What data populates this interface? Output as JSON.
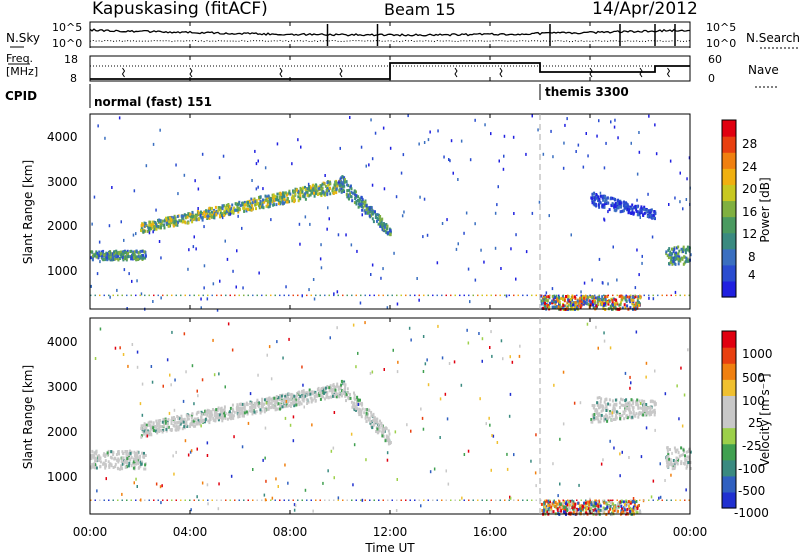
{
  "header": {
    "station": "Kapuskasing (fitACF)",
    "beam": "Beam 15",
    "date": "14/Apr/2012"
  },
  "noise_panel": {
    "left_label": "N.Sky",
    "right_label": "N.Search",
    "yticks_left": [
      "10^5",
      "10^0"
    ],
    "yticks_right": [
      "10^5",
      "10^0"
    ]
  },
  "freq_panel": {
    "left_label_line1": "Freq.",
    "left_label_line2": "[MHz]",
    "right_label": "Nave",
    "yticks_left": [
      "18",
      "8"
    ],
    "yticks_right": [
      "60",
      "0"
    ]
  },
  "cpid_panel": {
    "label": "CPID",
    "modes": [
      {
        "name": "normal (fast) 151",
        "start_hour": 0
      },
      {
        "name": "themis 3300",
        "start_hour": 18
      }
    ]
  },
  "range_panels": {
    "ylabel": "Slant Range [km]",
    "yticks": [
      "4000",
      "3000",
      "2000",
      "1000"
    ],
    "ylim": [
      180,
      4500
    ]
  },
  "time_axis": {
    "xlabel": "Time UT",
    "ticks": [
      "00:00",
      "04:00",
      "08:00",
      "12:00",
      "16:00",
      "20:00",
      "00:00"
    ],
    "xlim_hours": [
      0,
      24
    ]
  },
  "power_colorbar": {
    "label": "Power [dB]",
    "ticks": [
      "28",
      "24",
      "20",
      "16",
      "12",
      "8",
      "4"
    ],
    "colors": [
      "#2020e0",
      "#2a4cd0",
      "#3a6fc0",
      "#3a8a80",
      "#4a9a60",
      "#80b040",
      "#c8c820",
      "#f0b010",
      "#f08010",
      "#e84010",
      "#e00010"
    ]
  },
  "velocity_colorbar": {
    "label": "Velocity [m s⁻¹]",
    "ticks": [
      "1000",
      "500",
      "100",
      "25",
      "-25",
      "-100",
      "-500",
      "-1000"
    ],
    "colors": [
      "#2030d0",
      "#3060c0",
      "#3a8a80",
      "#40a050",
      "#9cd04a",
      "#c8c8c8",
      "#c8c8c8",
      "#f0c030",
      "#f08010",
      "#e84010",
      "#e00010"
    ]
  },
  "chart_data": [
    {
      "type": "heatmap",
      "title": "Power",
      "xlabel": "Time UT",
      "ylabel": "Slant Range [km]",
      "xlim": [
        0,
        24
      ],
      "ylim": [
        180,
        4500
      ],
      "features": [
        {
          "kind": "band",
          "t": [
            0,
            2.2
          ],
          "r0": [
            1300,
            1300
          ],
          "r1": [
            1500,
            1500
          ],
          "level": "mid"
        },
        {
          "kind": "band",
          "t": [
            2,
            10
          ],
          "r0": [
            1900,
            2800
          ],
          "r1": [
            2100,
            3100
          ],
          "level": "high"
        },
        {
          "kind": "band",
          "t": [
            10,
            12
          ],
          "r0": [
            2800,
            1800
          ],
          "r1": [
            3200,
            2000
          ],
          "level": "mid"
        },
        {
          "kind": "band",
          "t": [
            20,
            22.6
          ],
          "r0": [
            2500,
            2200
          ],
          "r1": [
            2800,
            2400
          ],
          "level": "low"
        },
        {
          "kind": "band",
          "t": [
            23,
            24
          ],
          "r0": [
            1200,
            1200
          ],
          "r1": [
            1600,
            1600
          ],
          "level": "mid"
        },
        {
          "kind": "band",
          "t": [
            18,
            22
          ],
          "r0": [
            200,
            200
          ],
          "r1": [
            500,
            500
          ],
          "level": "mixed"
        }
      ]
    },
    {
      "type": "heatmap",
      "title": "Velocity",
      "xlabel": "Time UT",
      "ylabel": "Slant Range [km]",
      "xlim": [
        0,
        24
      ],
      "ylim": [
        180,
        4500
      ],
      "features": [
        {
          "kind": "band",
          "t": [
            0,
            2.2
          ],
          "r0": [
            1200,
            1200
          ],
          "r1": [
            1600,
            1600
          ],
          "level": "ground"
        },
        {
          "kind": "band",
          "t": [
            2,
            10
          ],
          "r0": [
            1900,
            2800
          ],
          "r1": [
            2200,
            3100
          ],
          "level": "ground"
        },
        {
          "kind": "band",
          "t": [
            10,
            12
          ],
          "r0": [
            2800,
            1700
          ],
          "r1": [
            3200,
            2000
          ],
          "level": "ground"
        },
        {
          "kind": "band",
          "t": [
            20,
            22.6
          ],
          "r0": [
            2200,
            2400
          ],
          "r1": [
            2800,
            2700
          ],
          "level": "ground"
        },
        {
          "kind": "band",
          "t": [
            23,
            24
          ],
          "r0": [
            1200,
            1200
          ],
          "r1": [
            1700,
            1700
          ],
          "level": "ground"
        },
        {
          "kind": "band",
          "t": [
            18,
            22
          ],
          "r0": [
            200,
            200
          ],
          "r1": [
            500,
            500
          ],
          "level": "mixed"
        }
      ]
    }
  ]
}
